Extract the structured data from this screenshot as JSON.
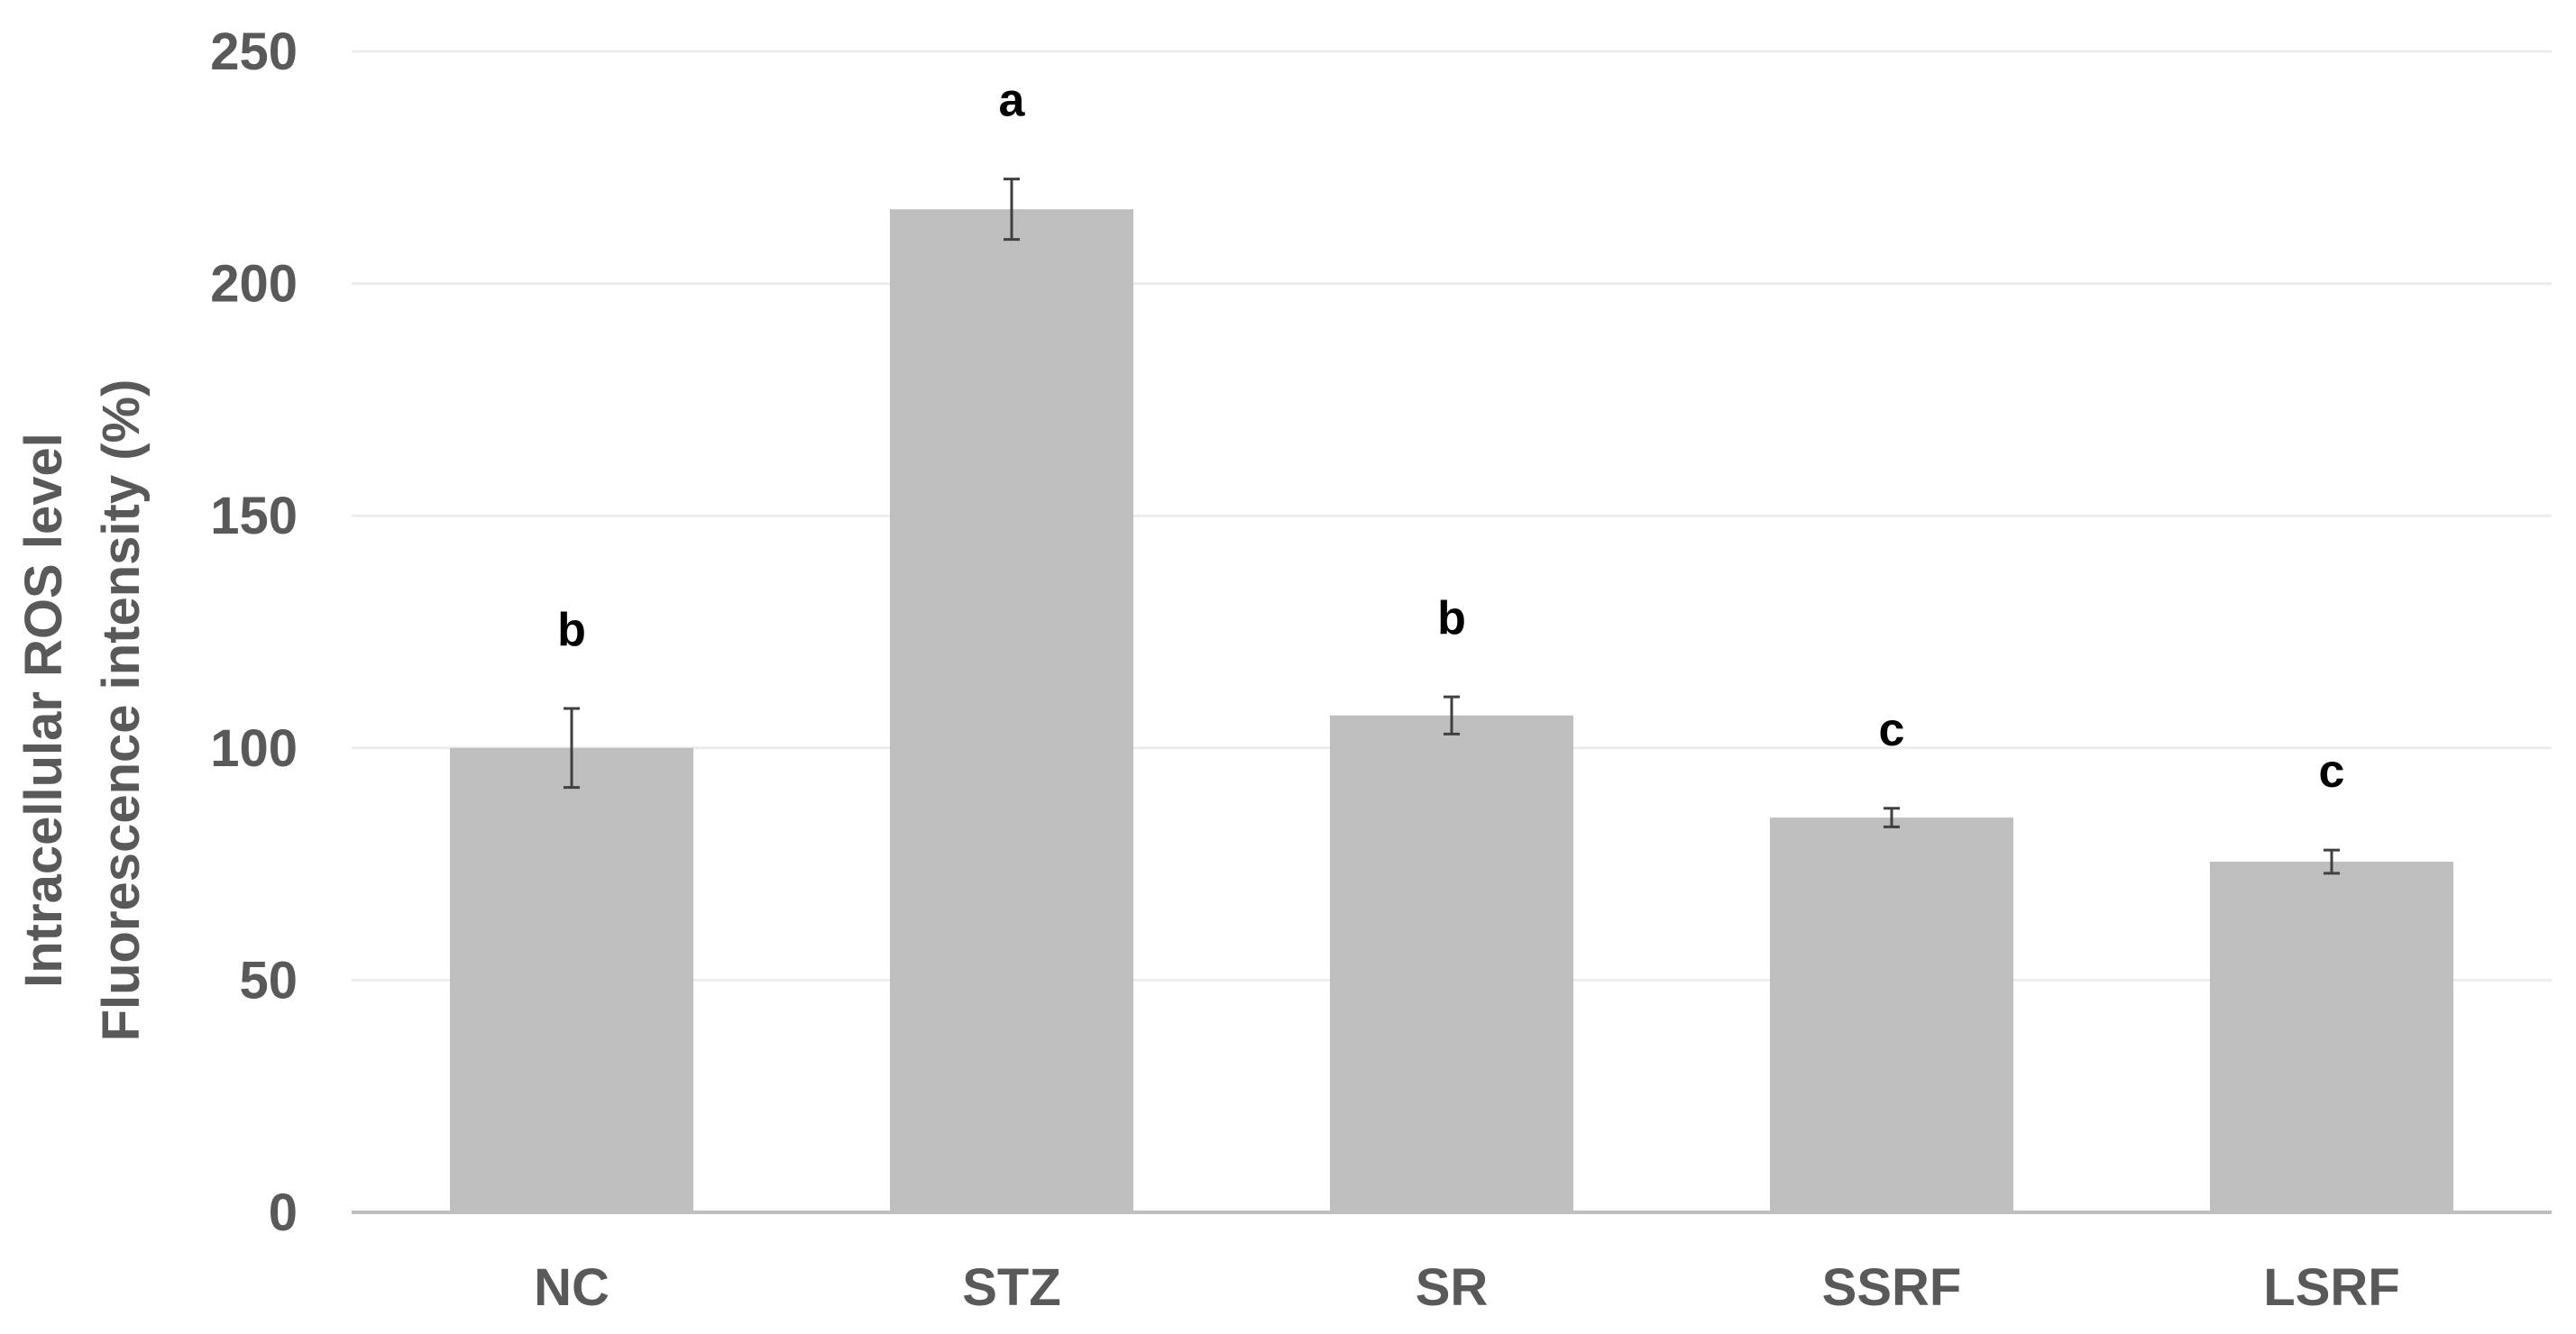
{
  "chart_data": {
    "type": "bar",
    "categories": [
      "NC",
      "STZ",
      "SR",
      "SSRF",
      "LSRF"
    ],
    "values": [
      100,
      216,
      107,
      85,
      75.5
    ],
    "errors": [
      8.5,
      6.5,
      4,
      2,
      2.5
    ],
    "significance": [
      "b",
      "a",
      "b",
      "c",
      "c"
    ],
    "title": "",
    "xlabel": "",
    "ylabel_lines": [
      "Intracellular ROS level",
      "Fluorescence intensity (%)"
    ],
    "ylim": [
      0,
      250
    ],
    "yticks": [
      0,
      50,
      100,
      150,
      200,
      250
    ],
    "grid": true,
    "colors": {
      "bar": "#bfbebe",
      "error_bar": "#404040",
      "grid": "#ececec",
      "axis": "#bfbfbf",
      "tick_text": "#595959",
      "sig_text": "#000000"
    }
  }
}
